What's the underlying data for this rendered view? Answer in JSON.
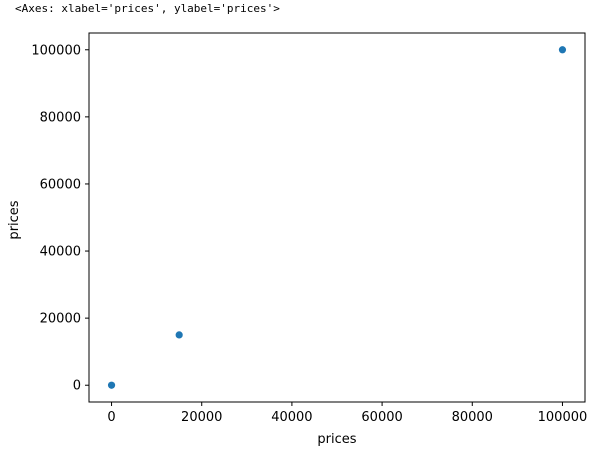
{
  "output_text": "<Axes: xlabel='prices', ylabel='prices'>",
  "chart_data": {
    "type": "scatter",
    "xlabel": "prices",
    "ylabel": "prices",
    "xlim": [
      -5000,
      105000
    ],
    "ylim": [
      -5000,
      105000
    ],
    "x_ticks": [
      0,
      20000,
      40000,
      60000,
      80000,
      100000
    ],
    "y_ticks": [
      0,
      20000,
      40000,
      60000,
      80000,
      100000
    ],
    "grid": false,
    "marker_color": "#1f77b4",
    "points": [
      {
        "x": 0,
        "y": 0
      },
      {
        "x": 15000,
        "y": 15000
      },
      {
        "x": 100000,
        "y": 100000
      }
    ]
  }
}
